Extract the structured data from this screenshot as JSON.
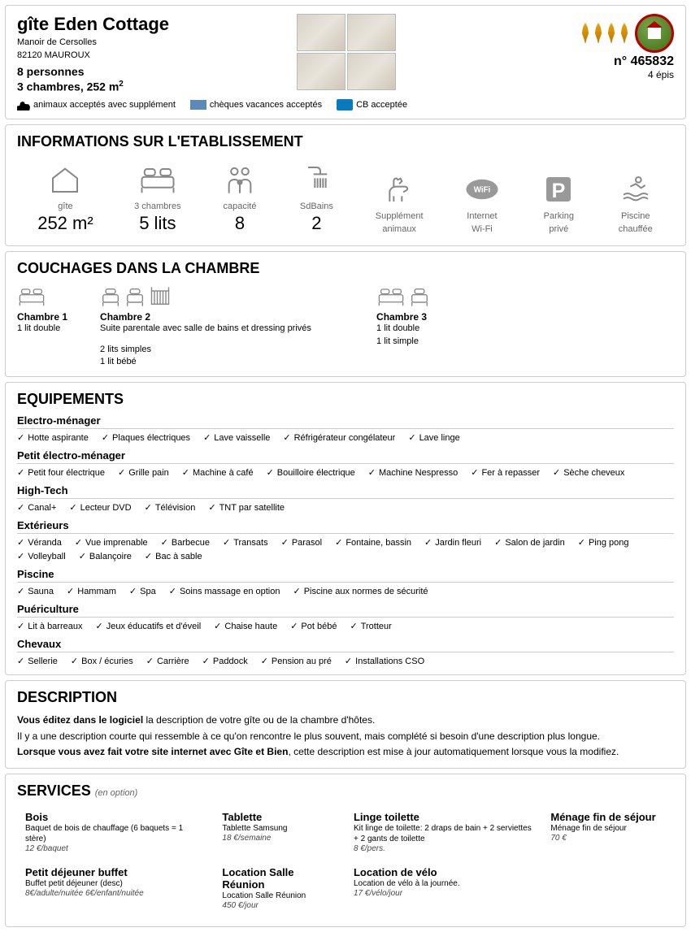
{
  "header": {
    "title": "gîte Eden Cottage",
    "address1": "Manoir de Cersolles",
    "address2": "82120 MAUROUX",
    "persons": "8 personnes",
    "rooms_area": "3 chambres, 252 m",
    "ref_label": "n° 465832",
    "epis_label": "4 épis",
    "accepts": [
      "animaux acceptés avec supplément",
      "chèques vacances acceptés",
      "CB acceptée"
    ]
  },
  "info": {
    "title": "INFORMATIONS SUR L'ETABLISSEMENT",
    "items": [
      {
        "label": "gîte",
        "value": "252 m²"
      },
      {
        "label": "3 chambres",
        "value": "5 lits"
      },
      {
        "label": "capacité",
        "value": "8"
      },
      {
        "label": "SdBains",
        "value": "2"
      },
      {
        "label": "Supplément",
        "label2": "animaux",
        "value": ""
      },
      {
        "label": "Internet",
        "label2": "Wi-Fi",
        "value": ""
      },
      {
        "label": "Parking",
        "label2": "privé",
        "value": ""
      },
      {
        "label": "Piscine",
        "label2": "chauffée",
        "value": ""
      }
    ]
  },
  "couchages": {
    "title": "COUCHAGES DANS LA CHAMBRE",
    "rooms": [
      {
        "name": "Chambre 1",
        "desc": "1 lit double",
        "extra": ""
      },
      {
        "name": "Chambre 2",
        "desc": "Suite parentale avec salle de bains et dressing privés",
        "extra": "2 lits simples\n1 lit bébé"
      },
      {
        "name": "Chambre 3",
        "desc": "1 lit double\n1 lit simple",
        "extra": ""
      }
    ]
  },
  "equip": {
    "title": "EQUIPEMENTS",
    "cats": [
      {
        "name": "Electro-ménager",
        "items": [
          "Hotte aspirante",
          "Plaques électriques",
          "Lave vaisselle",
          "Réfrigérateur congélateur",
          "Lave linge"
        ]
      },
      {
        "name": "Petit électro-ménager",
        "items": [
          "Petit four électrique",
          "Grille pain",
          "Machine à café",
          "Bouilloire électrique",
          "Machine Nespresso",
          "Fer à repasser",
          "Sèche cheveux"
        ]
      },
      {
        "name": "High-Tech",
        "items": [
          "Canal+",
          "Lecteur DVD",
          "Télévision",
          "TNT par satellite"
        ]
      },
      {
        "name": "Extérieurs",
        "items": [
          "Véranda",
          "Vue imprenable",
          "Barbecue",
          "Transats",
          "Parasol",
          "Fontaine, bassin",
          "Jardin fleuri",
          "Salon de jardin",
          "Ping pong",
          "Volleyball",
          "Balançoire",
          "Bac à sable"
        ]
      },
      {
        "name": "Piscine",
        "items": [
          "Sauna",
          "Hammam",
          "Spa",
          "Soins massage en option",
          "Piscine aux normes de sécurité"
        ]
      },
      {
        "name": "Puériculture",
        "items": [
          "Lit à barreaux",
          "Jeux éducatifs et d'éveil",
          "Chaise haute",
          "Pot bébé",
          "Trotteur"
        ]
      },
      {
        "name": "Chevaux",
        "items": [
          "Sellerie",
          "Box / écuries",
          "Carrière",
          "Paddock",
          "Pension au pré",
          "Installations CSO"
        ]
      }
    ]
  },
  "description": {
    "title": "DESCRIPTION",
    "line1a": "Vous éditez dans le logiciel",
    "line1b": " la description de votre gîte ou de la chambre d'hôtes.",
    "line2": "Il y a une description courte qui ressemble à ce qu'on rencontre le plus souvent, mais complété si besoin d'une description plus longue.",
    "line3a": "Lorsque vous avez fait votre site internet avec Gîte et Bien",
    "line3b": ", cette description est mise à jour automatiquement lorsque vous la modifiez."
  },
  "services": {
    "title": "SERVICES",
    "subtitle": "(en option)",
    "items": [
      {
        "name": "Bois",
        "desc": "Baquet de bois de chauffage (6 baquets = 1 stère)",
        "price": "12 €/baquet"
      },
      {
        "name": "Tablette",
        "desc": "Tablette Samsung",
        "price": "18 €/semaine"
      },
      {
        "name": "Linge toilette",
        "desc": "Kit linge de toilette: 2 draps de bain + 2 serviettes + 2 gants de toilette",
        "price": "8 €/pers."
      },
      {
        "name": "Ménage fin de séjour",
        "desc": "Ménage fin de séjour",
        "price": "70 €"
      },
      {
        "name": "Petit déjeuner buffet",
        "desc": "Buffet petit déjeuner (desc)",
        "price": "8€/adulte/nuitée 6€/enfant/nuitée"
      },
      {
        "name": "Location Salle Réunion",
        "desc": "Location Salle Réunion",
        "price": "450 €/jour"
      },
      {
        "name": "Location de vélo",
        "desc": "Location de vélo à la journée.",
        "price": "17 €/vélo/jour"
      }
    ]
  }
}
